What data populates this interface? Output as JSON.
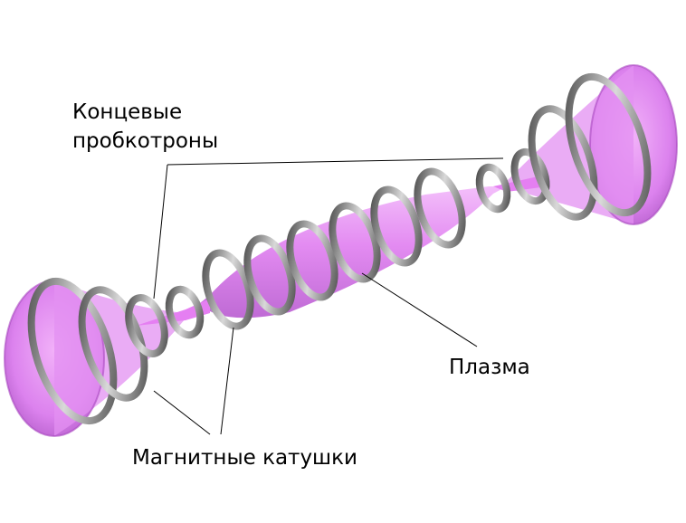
{
  "labels": {
    "end_mirrors_line1": "Концевые",
    "end_mirrors_line2": "пробкотроны",
    "plasma": "Плазма",
    "magnetic_coils": "Магнитные катушки"
  },
  "colors": {
    "plasma": "#e07ef0",
    "plasma_edge": "#b050c8",
    "coil_dark": "#4a4a4a",
    "coil_light": "#c8c8c8",
    "leader_line": "#000000"
  }
}
